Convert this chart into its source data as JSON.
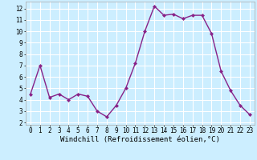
{
  "x": [
    0,
    1,
    2,
    3,
    4,
    5,
    6,
    7,
    8,
    9,
    10,
    11,
    12,
    13,
    14,
    15,
    16,
    17,
    18,
    19,
    20,
    21,
    22,
    23
  ],
  "y": [
    4.5,
    7.0,
    4.2,
    4.5,
    4.0,
    4.5,
    4.3,
    3.0,
    2.5,
    3.5,
    5.0,
    7.2,
    10.0,
    12.2,
    11.4,
    11.5,
    11.1,
    11.4,
    11.4,
    9.8,
    6.5,
    4.8,
    3.5,
    2.7
  ],
  "line_color": "#882288",
  "marker": "D",
  "marker_size": 2.0,
  "line_width": 1.0,
  "xlabel": "Windchill (Refroidissement éolien,°C)",
  "xlabel_fontsize": 6.5,
  "ylim": [
    1.8,
    12.6
  ],
  "xlim": [
    -0.5,
    23.5
  ],
  "yticks": [
    2,
    3,
    4,
    5,
    6,
    7,
    8,
    9,
    10,
    11,
    12
  ],
  "xticks": [
    0,
    1,
    2,
    3,
    4,
    5,
    6,
    7,
    8,
    9,
    10,
    11,
    12,
    13,
    14,
    15,
    16,
    17,
    18,
    19,
    20,
    21,
    22,
    23
  ],
  "background_color": "#cceeff",
  "grid_color": "#ffffff",
  "tick_fontsize": 5.5,
  "spine_color": "#aaaaaa"
}
